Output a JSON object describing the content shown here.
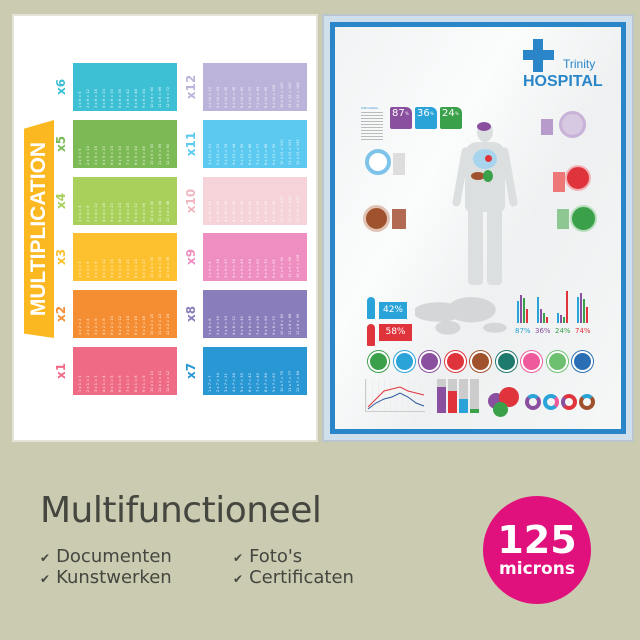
{
  "left_poster": {
    "title": "MULTIPLICATION",
    "tables": [
      {
        "label": "x1",
        "color": "#ef6a85",
        "lines": [
          "1 x 1 = 1",
          "2 x 1 = 2",
          "3 x 1 = 3",
          "4 x 1 = 4",
          "5 x 1 = 5",
          "6 x 1 = 6",
          "7 x 1 = 7",
          "8 x 1 = 8",
          "9 x 1 = 9",
          "10 x 1 = 10",
          "11 x 1 = 11",
          "12 x 1 = 12"
        ]
      },
      {
        "label": "x2",
        "color": "#f58e33",
        "lines": [
          "1 x 2 = 2",
          "2 x 2 = 4",
          "3 x 2 = 6",
          "4 x 2 = 8",
          "5 x 2 = 10",
          "6 x 2 = 12",
          "7 x 2 = 14",
          "8 x 2 = 16",
          "9 x 2 = 18",
          "10 x 2 = 20",
          "11 x 2 = 22",
          "12 x 2 = 24"
        ]
      },
      {
        "label": "x3",
        "color": "#fdc02e",
        "lines": [
          "1 x 3 = 3",
          "2 x 3 = 6",
          "3 x 3 = 9",
          "4 x 3 = 12",
          "5 x 3 = 15",
          "6 x 3 = 18",
          "7 x 3 = 21",
          "8 x 3 = 24",
          "9 x 3 = 27",
          "10 x 3 = 30",
          "11 x 3 = 33",
          "12 x 3 = 36"
        ]
      },
      {
        "label": "x4",
        "color": "#a8d05a",
        "lines": [
          "1 x 4 = 4",
          "2 x 4 = 8",
          "3 x 4 = 12",
          "4 x 4 = 16",
          "5 x 4 = 20",
          "6 x 4 = 24",
          "7 x 4 = 28",
          "8 x 4 = 32",
          "9 x 4 = 36",
          "10 x 4 = 40",
          "11 x 4 = 44",
          "12 x 4 = 48"
        ]
      },
      {
        "label": "x5",
        "color": "#7cba55",
        "lines": [
          "1 x 5 = 5",
          "2 x 5 = 10",
          "3 x 5 = 15",
          "4 x 5 = 20",
          "5 x 5 = 25",
          "6 x 5 = 30",
          "7 x 5 = 35",
          "8 x 5 = 40",
          "9 x 5 = 45",
          "10 x 5 = 50",
          "11 x 5 = 55",
          "12 x 5 = 60"
        ]
      },
      {
        "label": "x6",
        "color": "#3ec0d4",
        "lines": [
          "1 x 6 = 6",
          "2 x 6 = 12",
          "3 x 6 = 18",
          "4 x 6 = 24",
          "5 x 6 = 30",
          "6 x 6 = 36",
          "7 x 6 = 42",
          "8 x 6 = 48",
          "9 x 6 = 54",
          "10 x 6 = 60",
          "11 x 6 = 66",
          "12 x 6 = 72"
        ]
      },
      {
        "label": "x7",
        "color": "#2a97d5",
        "lines": [
          "1 x 7 = 7",
          "2 x 7 = 14",
          "3 x 7 = 21",
          "4 x 7 = 28",
          "5 x 7 = 35",
          "6 x 7 = 42",
          "7 x 7 = 49",
          "8 x 7 = 56",
          "9 x 7 = 63",
          "10 x 7 = 70",
          "11 x 7 = 77",
          "12 x 7 = 84"
        ]
      },
      {
        "label": "x8",
        "color": "#8a7dbb",
        "lines": [
          "1 x 8 = 8",
          "2 x 8 = 16",
          "3 x 8 = 24",
          "4 x 8 = 32",
          "5 x 8 = 40",
          "6 x 8 = 48",
          "7 x 8 = 56",
          "8 x 8 = 64",
          "9 x 8 = 72",
          "10 x 8 = 80",
          "11 x 8 = 88",
          "12 x 8 = 96"
        ]
      },
      {
        "label": "x9",
        "color": "#ef8ec0",
        "lines": [
          "1 x 9 = 9",
          "2 x 9 = 18",
          "3 x 9 = 27",
          "4 x 9 = 36",
          "5 x 9 = 45",
          "6 x 9 = 54",
          "7 x 9 = 63",
          "8 x 9 = 72",
          "9 x 9 = 81",
          "10 x 9 = 90",
          "11 x 9 = 99",
          "12 x 9 = 108"
        ]
      },
      {
        "label": "x10",
        "color": "#f6d3d8",
        "lines": [
          "1 x 10 = 10",
          "2 x 10 = 20",
          "3 x 10 = 30",
          "4 x 10 = 40",
          "5 x 10 = 50",
          "6 x 10 = 60",
          "7 x 10 = 70",
          "8 x 10 = 80",
          "9 x 10 = 90",
          "10 x 10 = 100",
          "11 x 10 = 110",
          "12 x 10 = 120"
        ]
      },
      {
        "label": "x11",
        "color": "#5ccaf0",
        "lines": [
          "1 x 11 = 11",
          "2 x 11 = 22",
          "3 x 11 = 33",
          "4 x 11 = 44",
          "5 x 11 = 55",
          "6 x 11 = 66",
          "7 x 11 = 77",
          "8 x 11 = 88",
          "9 x 11 = 99",
          "10 x 11 = 110",
          "11 x 11 = 121",
          "12 x 11 = 132"
        ]
      },
      {
        "label": "x12",
        "color": "#bbb3da",
        "lines": [
          "1 x 12 = 12",
          "2 x 12 = 24",
          "3 x 12 = 36",
          "4 x 12 = 48",
          "5 x 12 = 60",
          "6 x 12 = 72",
          "7 x 12 = 84",
          "8 x 12 = 96",
          "9 x 12 = 108",
          "10 x 12 = 120",
          "11 x 12 = 132",
          "12 x 12 = 144"
        ]
      }
    ]
  },
  "right_poster": {
    "brand_small": "Trinity",
    "brand_big": "HOSPITAL",
    "info_label": "Information",
    "stats": [
      {
        "value": "87",
        "unit": "%",
        "color": "#8b4f9f"
      },
      {
        "value": "36",
        "unit": "%",
        "color": "#2aa3d9"
      },
      {
        "value": "24",
        "unit": "%",
        "color": "#3aa04a"
      }
    ],
    "male_pct": "42%",
    "female_pct": "58%",
    "bar_groups": [
      {
        "label": "87%",
        "color": "#2aa3d9"
      },
      {
        "label": "36%",
        "color": "#8b4f9f"
      },
      {
        "label": "24%",
        "color": "#3aa04a"
      },
      {
        "label": "74%",
        "color": "#e0343c"
      }
    ],
    "icon_row": [
      {
        "icon": "stomach-icon",
        "color": "#3aa04a"
      },
      {
        "icon": "lungs-icon",
        "color": "#2aa3d9"
      },
      {
        "icon": "brain-icon",
        "color": "#8b4f9f"
      },
      {
        "icon": "heart-organ-icon",
        "color": "#e0343c"
      },
      {
        "icon": "liver-icon",
        "color": "#a0522d"
      },
      {
        "icon": "tooth-icon",
        "color": "#1f7a6e"
      },
      {
        "icon": "heart-icon",
        "color": "#ee5a9c"
      },
      {
        "icon": "bed-icon",
        "color": "#6cc070"
      },
      {
        "icon": "apple-icon",
        "color": "#2a6fb4"
      }
    ]
  },
  "footer": {
    "heading": "Multifunctioneel",
    "features": [
      "Documenten",
      "Kunstwerken",
      "Foto's",
      "Certificaten"
    ],
    "badge_number": "125",
    "badge_unit": "microns",
    "badge_color": "#e0107c"
  }
}
